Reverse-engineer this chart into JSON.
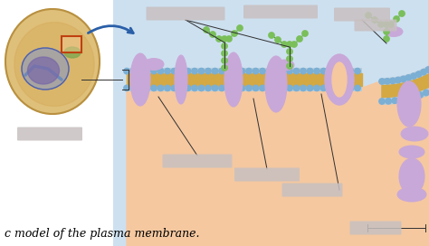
{
  "bg_color": "#cde0f0",
  "cell_interior_color": "#f5c8a0",
  "membrane_dot_color": "#7bafd4",
  "membrane_yellow_color": "#d4a843",
  "protein_color": "#c8a8d8",
  "protein_outline": "#9878b8",
  "glyco_green": "#7abf5a",
  "glyco_outline": "#3a8a2a",
  "figure_bg": "#ffffff",
  "arrow_color": "#2a5fa8",
  "label_gray": "#c8c0c0",
  "label_alpha": 0.85,
  "caption_text": "c model of the plasma membrane.",
  "caption_fontsize": 9,
  "cell_body_color": "#dfc07a",
  "cell_outline_color": "#b89040",
  "nucleus_color": "#8870b8",
  "nucleus_outline": "#5848a0",
  "er_color": "#4878a0",
  "box_outline": "#c04010"
}
